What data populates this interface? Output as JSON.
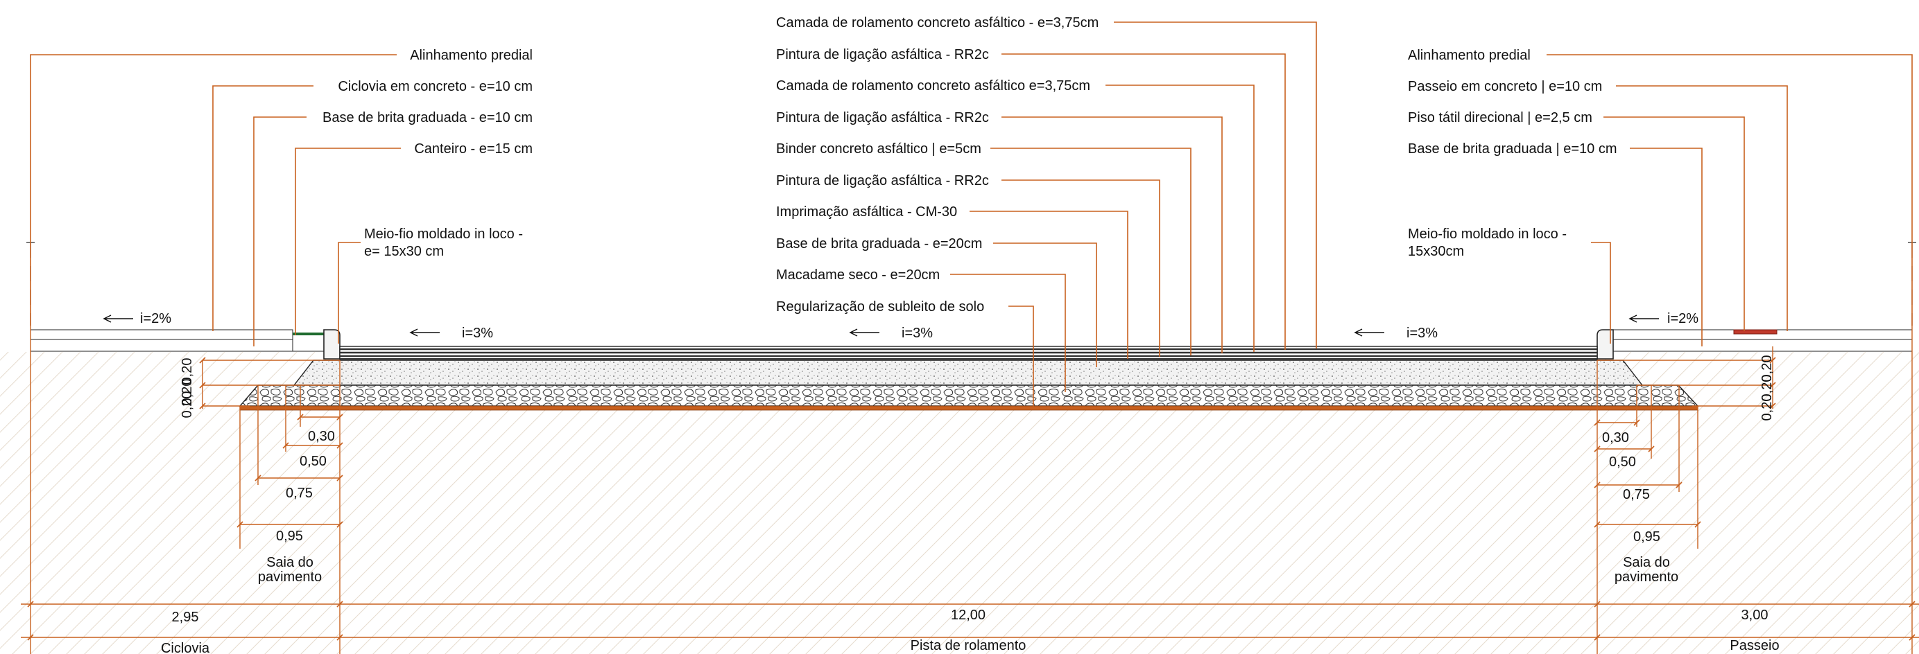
{
  "colors": {
    "annotation": "#c8601e",
    "outline": "#222222",
    "asphalt": "#555555",
    "tactile": "#c0392b",
    "grass": "#1e6b2e"
  },
  "left_labels": [
    "Alinhamento predial",
    "Ciclovia em concreto - e=10 cm",
    "Base de brita graduada - e=10 cm",
    "Canteiro - e=15 cm"
  ],
  "left_curb_label": [
    "Meio-fio moldado in loco -",
    "e= 15x30 cm"
  ],
  "center_labels": [
    "Camada de rolamento concreto asfáltico - e=3,75cm",
    "Pintura de ligação asfáltica - RR2c",
    "Camada de rolamento concreto asfáltico e=3,75cm",
    "Pintura de ligação asfáltica - RR2c",
    "Binder concreto asfáltico | e=5cm",
    "Pintura de ligação asfáltica - RR2c",
    "Imprimação asfáltica - CM-30",
    "Base de brita graduada - e=20cm",
    "Macadame seco - e=20cm",
    "Regularização de subleito de solo"
  ],
  "right_labels": [
    "Alinhamento predial",
    "Passeio em concreto | e=10 cm",
    "Piso tátil direcional | e=2,5 cm",
    "Base de brita graduada | e=10 cm"
  ],
  "right_curb_label": [
    "Meio-fio moldado in loco -",
    "15x30cm"
  ],
  "slopes": {
    "ciclovia": "i=2%",
    "pista_left": "i=3%",
    "pista_center": "i=3%",
    "pista_right": "i=3%",
    "passeio": "i=2%"
  },
  "vertical_dims": {
    "left": [
      "0,20",
      "0,20",
      "0,20"
    ],
    "right": [
      "0,20",
      "0,20",
      "0,20"
    ]
  },
  "saia_dims": {
    "left": [
      "0,30",
      "0,50",
      "0,75",
      "0,95"
    ],
    "right": [
      "0,30",
      "0,50",
      "0,75",
      "0,95"
    ]
  },
  "saia_label": [
    "Saia do",
    "pavimento"
  ],
  "widths": {
    "ciclovia": "2,95",
    "pista": "12,00",
    "passeio": "3,00"
  },
  "zone_names": {
    "ciclovia": "Ciclovia",
    "pista": "Pista de rolamento",
    "passeio": "Passeio"
  }
}
